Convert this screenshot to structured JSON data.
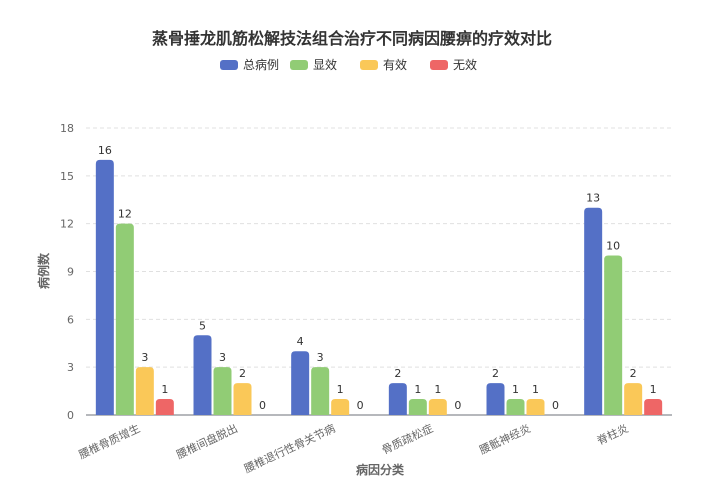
{
  "chart_data": {
    "type": "bar",
    "title": "蒸骨捶龙肌筋松解技法组合治疗不同病因腰痹的疗效对比",
    "xlabel": "病因分类",
    "ylabel": "病例数",
    "ylim": [
      0,
      18
    ],
    "yticks": [
      0,
      3,
      6,
      9,
      12,
      15,
      18
    ],
    "grid": true,
    "legend_position": "top",
    "categories": [
      "腰椎骨质增生",
      "腰椎间盘脱出",
      "腰椎退行性骨关节病",
      "骨质疏松症",
      "腰骶神经炎",
      "脊柱炎"
    ],
    "series": [
      {
        "name": "总病例",
        "color": "#5470c6",
        "values": [
          16,
          5,
          4,
          2,
          2,
          13
        ]
      },
      {
        "name": "显效",
        "color": "#91cc75",
        "values": [
          12,
          3,
          3,
          1,
          1,
          10
        ]
      },
      {
        "name": "有效",
        "color": "#fac858",
        "values": [
          3,
          2,
          1,
          1,
          1,
          2
        ]
      },
      {
        "name": "无效",
        "color": "#ee6666",
        "values": [
          1,
          0,
          0,
          0,
          0,
          1
        ]
      }
    ]
  }
}
